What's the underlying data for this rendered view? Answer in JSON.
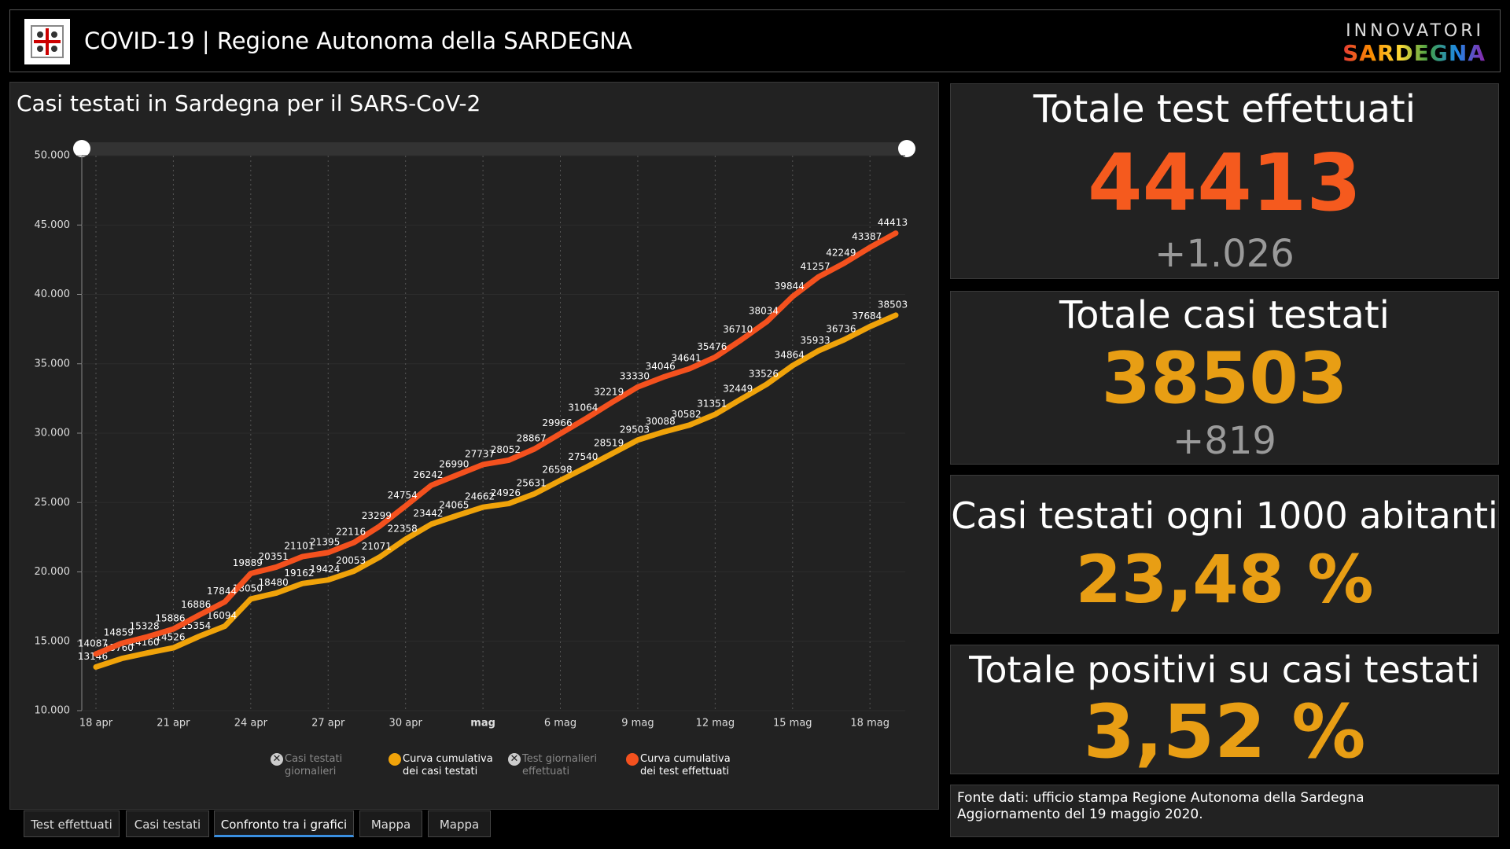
{
  "header": {
    "title": "COVID-19 | Regione Autonoma della SARDEGNA",
    "brand_top": "INNOVATORI",
    "brand_bottom": "SARDEGNA"
  },
  "chart_data": {
    "type": "line",
    "title": "Casi testati in Sardegna per il SARS-CoV-2",
    "categories": [
      "18 apr",
      null,
      null,
      "21 apr",
      null,
      null,
      "24 apr",
      null,
      null,
      "27 apr",
      null,
      null,
      "30 apr",
      null,
      null,
      "mag",
      null,
      null,
      "6 mag",
      null,
      null,
      "9 mag",
      null,
      null,
      "12 mag",
      null,
      null,
      "15 mag",
      null,
      null,
      "18 mag",
      null
    ],
    "series": [
      {
        "name": "Casi testati giornalieri",
        "color": "#9a9a9a",
        "visible": false
      },
      {
        "name": "Curva cumulativa dei casi testati",
        "color": "#f0a30a",
        "visible": true,
        "values": [
          13146,
          13760,
          14160,
          14526,
          15354,
          16094,
          18050,
          18480,
          19162,
          19424,
          20053,
          21071,
          22358,
          23442,
          24065,
          24662,
          24926,
          25631,
          26598,
          27540,
          28519,
          29503,
          30088,
          30582,
          31351,
          32449,
          33526,
          34864,
          35933,
          36736,
          37684,
          38503
        ]
      },
      {
        "name": "Test giornalieri effettuati",
        "color": "#9a9a9a",
        "visible": false
      },
      {
        "name": "Curva cumulativa dei test effettuati",
        "color": "#f4511e",
        "visible": true,
        "values": [
          14087,
          14859,
          15328,
          15886,
          16886,
          17844,
          19889,
          20351,
          21101,
          21395,
          22116,
          23299,
          24754,
          26242,
          26990,
          27737,
          28052,
          28867,
          29966,
          31064,
          32219,
          33330,
          34046,
          34641,
          35476,
          36710,
          38034,
          39844,
          41257,
          42249,
          43387,
          44413
        ]
      }
    ],
    "ylim": [
      10000,
      50000
    ],
    "yticks": [
      {
        "value": 10000,
        "label": "10.000"
      },
      {
        "value": 15000,
        "label": "15.000"
      },
      {
        "value": 20000,
        "label": "20.000"
      },
      {
        "value": 25000,
        "label": "25.000"
      },
      {
        "value": 30000,
        "label": "30.000"
      },
      {
        "value": 35000,
        "label": "35.000"
      },
      {
        "value": 40000,
        "label": "40.000"
      },
      {
        "value": 45000,
        "label": "45.000"
      },
      {
        "value": 50000,
        "label": "50.000"
      }
    ],
    "grid": true
  },
  "cards": [
    {
      "title": "Totale test effettuati",
      "value": 44413,
      "delta": "+1.026",
      "color": "#f55a1e"
    },
    {
      "title": "Totale casi testati",
      "value": 38503,
      "delta": "+819",
      "color": "#e89e14"
    },
    {
      "title": "Casi testati ogni 1000 abitanti",
      "value": "23,48 %",
      "color": "#e89e14"
    },
    {
      "title": "Totale positivi su casi testati",
      "value": "3,52 %",
      "color": "#e89e14"
    }
  ],
  "source": {
    "line1": "Fonte dati: ufficio stampa Regione Autonoma della Sardegna",
    "line2": "Aggiornamento del 19 maggio 2020."
  },
  "tabs": [
    "Test effettuati",
    "Casi testati",
    "Confronto tra i grafici",
    "Mappa",
    "Mappa"
  ],
  "active_tab": 2
}
